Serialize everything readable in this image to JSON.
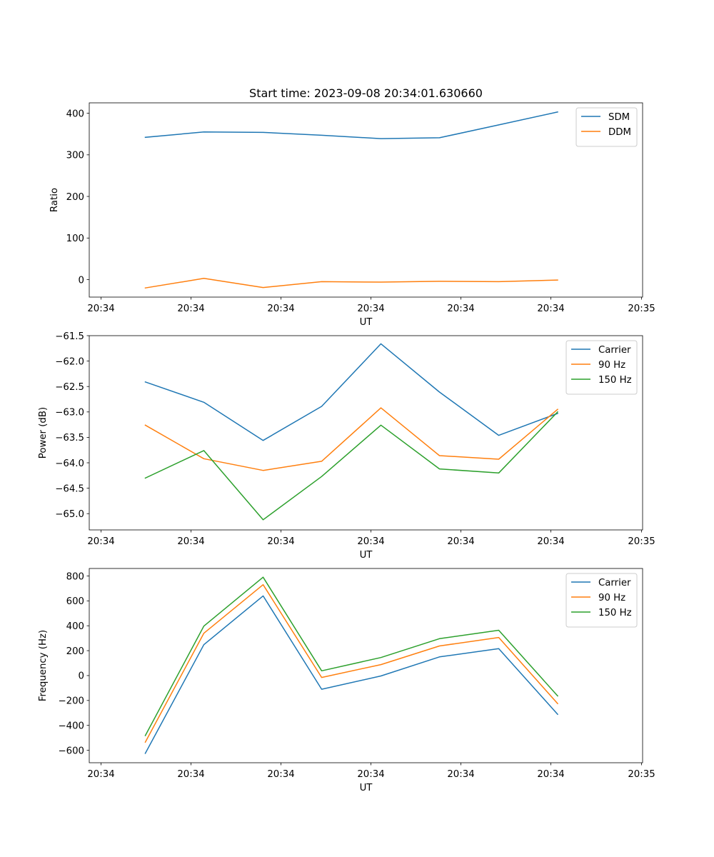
{
  "chart_data": [
    {
      "type": "line",
      "title": "Start time: 2023-09-08 20:34:01.630660",
      "xlabel": "UT",
      "ylabel": "Ratio",
      "x_tick_labels": [
        "20:34",
        "20:34",
        "20:34",
        "20:34",
        "20:34",
        "20:34",
        "20:35"
      ],
      "y_ticks": [
        0,
        100,
        200,
        300,
        400
      ],
      "y_tick_labels": [
        "0",
        "100",
        "200",
        "300",
        "400"
      ],
      "ylim": [
        -42,
        425
      ],
      "legend_position": "top-right",
      "grid": false,
      "series": [
        {
          "name": "SDM",
          "color": "#1f77b4",
          "values": [
            342,
            355,
            354,
            347,
            339,
            341,
            372,
            403
          ]
        },
        {
          "name": "DDM",
          "color": "#ff7f0e",
          "values": [
            -20,
            3,
            -19,
            -5,
            -6,
            -4,
            -5,
            -1
          ]
        }
      ]
    },
    {
      "type": "line",
      "title": "",
      "xlabel": "UT",
      "ylabel": "Power (dB)",
      "x_tick_labels": [
        "20:34",
        "20:34",
        "20:34",
        "20:34",
        "20:34",
        "20:34",
        "20:35"
      ],
      "y_ticks": [
        -61.5,
        -62.0,
        -62.5,
        -63.0,
        -63.5,
        -64.0,
        -64.5,
        -65.0
      ],
      "y_tick_labels": [
        "−61.5",
        "−62.0",
        "−62.5",
        "−63.0",
        "−63.5",
        "−64.0",
        "−64.5",
        "−65.0"
      ],
      "ylim": [
        -65.32,
        -61.5
      ],
      "legend_position": "top-right",
      "grid": false,
      "series": [
        {
          "name": "Carrier",
          "color": "#1f77b4",
          "values": [
            -62.41,
            -62.81,
            -63.56,
            -62.89,
            -61.66,
            -62.61,
            -63.46,
            -63.03
          ]
        },
        {
          "name": "90 Hz",
          "color": "#ff7f0e",
          "values": [
            -63.26,
            -63.92,
            -64.15,
            -63.97,
            -62.92,
            -63.86,
            -63.93,
            -62.95
          ]
        },
        {
          "name": "150 Hz",
          "color": "#2ca02c",
          "values": [
            -64.3,
            -63.76,
            -65.12,
            -64.27,
            -63.26,
            -64.12,
            -64.2,
            -63.0
          ]
        }
      ]
    },
    {
      "type": "line",
      "title": "",
      "xlabel": "UT",
      "ylabel": "Frequency (Hz)",
      "x_tick_labels": [
        "20:34",
        "20:34",
        "20:34",
        "20:34",
        "20:34",
        "20:34",
        "20:35"
      ],
      "y_ticks": [
        800,
        600,
        400,
        200,
        0,
        -200,
        -400,
        -600
      ],
      "y_tick_labels": [
        "800",
        "600",
        "400",
        "200",
        "0",
        "−200",
        "−400",
        "−600"
      ],
      "ylim": [
        -700,
        860
      ],
      "legend_position": "top-right",
      "grid": false,
      "series": [
        {
          "name": "Carrier",
          "color": "#1f77b4",
          "values": [
            -625,
            248,
            640,
            -110,
            -3,
            150,
            216,
            -311
          ]
        },
        {
          "name": "90 Hz",
          "color": "#ff7f0e",
          "values": [
            -535,
            340,
            730,
            -15,
            88,
            238,
            306,
            -225
          ]
        },
        {
          "name": "150 Hz",
          "color": "#2ca02c",
          "values": [
            -482,
            397,
            790,
            38,
            145,
            296,
            364,
            -164
          ]
        }
      ]
    }
  ]
}
